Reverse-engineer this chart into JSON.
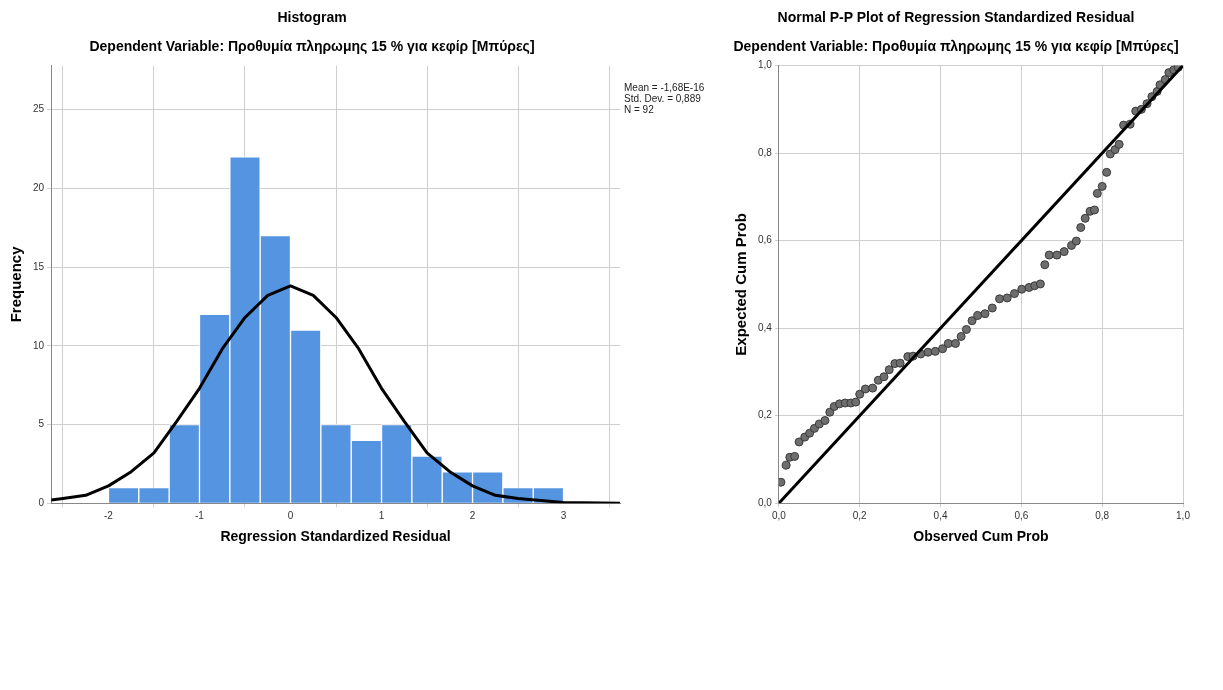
{
  "chart_data": [
    {
      "type": "histogram",
      "title": "Histogram",
      "subtitle": "Dependent Variable: Προθυμία πληρωμης 15 % για κεφίρ [Μπύρες]",
      "xlabel": "Regression Standardized Residual",
      "ylabel": "Frequency",
      "bins": [
        -2,
        -1.667,
        -1.333,
        -1,
        -0.667,
        -0.333,
        0,
        0.333,
        0.667,
        1,
        1.333,
        1.667,
        2,
        2.333,
        2.667,
        3
      ],
      "values": [
        1,
        1,
        5,
        12,
        22,
        17,
        11,
        5,
        4,
        5,
        3,
        2,
        2,
        1,
        1
      ],
      "color": "#5594e0",
      "series": [
        {
          "type": "line",
          "color": "#000000",
          "x": [
            -2.63,
            -2.5,
            -2.25,
            -2,
            -1.75,
            -1.5,
            -1.25,
            -1,
            -0.75,
            -0.5,
            -0.25,
            0,
            0.25,
            0.5,
            0.75,
            1,
            1.25,
            1.5,
            1.75,
            2,
            2.25,
            2.5,
            3,
            3.62
          ],
          "values": [
            0.2,
            0.3,
            0.5,
            1.1,
            2,
            3.2,
            5.2,
            7.3,
            9.8,
            11.8,
            13.2,
            13.8,
            13.2,
            11.8,
            9.8,
            7.3,
            5.2,
            3.2,
            2,
            1.1,
            0.5,
            0.3,
            0.05,
            0
          ]
        }
      ],
      "xlim": [
        -2.63,
        3.62
      ],
      "xticks": [
        -2,
        -1,
        0,
        1,
        2,
        3
      ],
      "ylim": [
        0,
        27.8
      ],
      "yticks": [
        0,
        5,
        10,
        15,
        20,
        25
      ],
      "grid": true,
      "annotations": [
        "Mean = -1,68E-16",
        "Std. Dev. = 0,889",
        "N = 92"
      ]
    },
    {
      "type": "scatter",
      "title": "Normal P-P Plot of Regression Standardized Residual",
      "subtitle": "Dependent Variable: Προθυμία πληρωμης 15 % για κεφίρ [Μπύρες]",
      "xlabel": "Observed Cum Prob",
      "ylabel": "Expected Cum Prob",
      "series": [
        {
          "type": "scatter",
          "color": "#6e6e6e",
          "x": [
            0.005,
            0.018,
            0.027,
            0.039,
            0.05,
            0.064,
            0.076,
            0.088,
            0.1,
            0.114,
            0.126,
            0.137,
            0.15,
            0.164,
            0.178,
            0.19,
            0.2,
            0.214,
            0.232,
            0.246,
            0.26,
            0.273,
            0.287,
            0.3,
            0.319,
            0.332,
            0.351,
            0.369,
            0.387,
            0.405,
            0.419,
            0.437,
            0.451,
            0.464,
            0.478,
            0.492,
            0.51,
            0.528,
            0.546,
            0.565,
            0.583,
            0.601,
            0.619,
            0.633,
            0.647,
            0.658,
            0.669,
            0.688,
            0.706,
            0.724,
            0.736,
            0.747,
            0.758,
            0.77,
            0.781,
            0.788,
            0.8,
            0.811,
            0.82,
            0.832,
            0.842,
            0.853,
            0.869,
            0.883,
            0.897,
            0.911,
            0.923,
            0.936,
            0.943,
            0.956,
            0.965,
            0.977,
            0.988
          ],
          "values": [
            0.048,
            0.087,
            0.105,
            0.107,
            0.14,
            0.151,
            0.16,
            0.171,
            0.181,
            0.189,
            0.208,
            0.221,
            0.227,
            0.229,
            0.229,
            0.231,
            0.249,
            0.261,
            0.263,
            0.281,
            0.289,
            0.305,
            0.319,
            0.32,
            0.335,
            0.336,
            0.341,
            0.345,
            0.347,
            0.353,
            0.365,
            0.365,
            0.381,
            0.397,
            0.417,
            0.429,
            0.433,
            0.446,
            0.467,
            0.469,
            0.479,
            0.489,
            0.493,
            0.497,
            0.501,
            0.545,
            0.567,
            0.567,
            0.575,
            0.589,
            0.599,
            0.63,
            0.651,
            0.667,
            0.67,
            0.708,
            0.724,
            0.756,
            0.798,
            0.808,
            0.82,
            0.864,
            0.866,
            0.896,
            0.9,
            0.913,
            0.929,
            0.941,
            0.956,
            0.968,
            0.984,
            0.99,
            0.996
          ]
        },
        {
          "type": "line",
          "color": "#000000",
          "x": [
            0,
            1
          ],
          "values": [
            0,
            1
          ]
        }
      ],
      "xlim": [
        0,
        1
      ],
      "xticks": [
        {
          "value": 0,
          "label": "0,0"
        },
        {
          "value": 0.2,
          "label": "0,2"
        },
        {
          "value": 0.4,
          "label": "0,4"
        },
        {
          "value": 0.6,
          "label": "0,6"
        },
        {
          "value": 0.8,
          "label": "0,8"
        },
        {
          "value": 1,
          "label": "1,0"
        }
      ],
      "ylim": [
        0,
        1
      ],
      "yticks": [
        {
          "value": 0,
          "label": "0,0"
        },
        {
          "value": 0.2,
          "label": "0,2"
        },
        {
          "value": 0.4,
          "label": "0,4"
        },
        {
          "value": 0.6,
          "label": "0,6"
        },
        {
          "value": 0.8,
          "label": "0,8"
        },
        {
          "value": 1,
          "label": "1,0"
        }
      ],
      "grid": true
    }
  ]
}
